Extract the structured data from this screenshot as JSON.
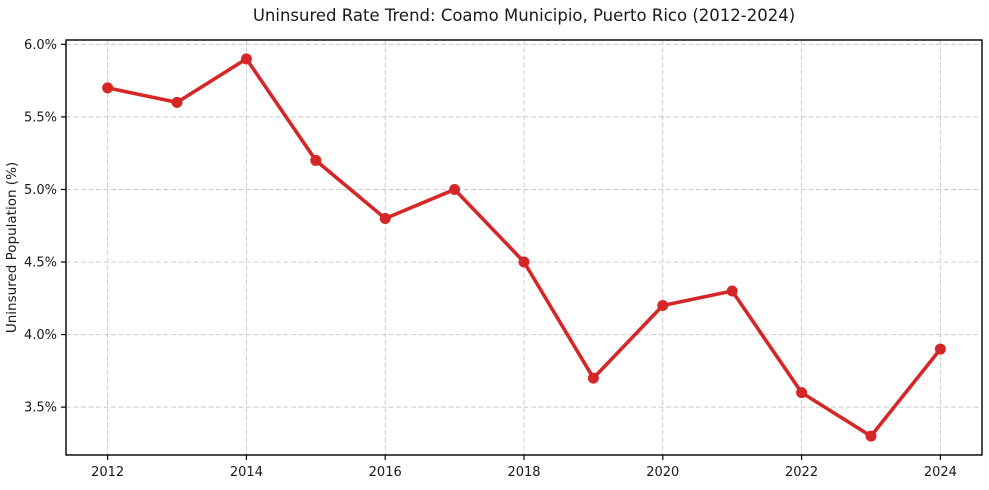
{
  "chart_data": {
    "type": "line",
    "title": "Uninsured Rate Trend: Coamo Municipio, Puerto Rico (2012-2024)",
    "xlabel": "",
    "ylabel": "Uninsured Population (%)",
    "x": [
      2012,
      2013,
      2014,
      2015,
      2016,
      2017,
      2018,
      2019,
      2020,
      2021,
      2022,
      2023,
      2024
    ],
    "values": [
      5.7,
      5.6,
      5.9,
      5.2,
      4.8,
      5.0,
      4.5,
      3.7,
      4.2,
      4.3,
      3.6,
      3.3,
      3.9
    ],
    "xlim": [
      2011.4,
      2024.6
    ],
    "ylim": [
      3.17,
      6.03
    ],
    "xticks": [
      2012,
      2014,
      2016,
      2018,
      2020,
      2022,
      2024
    ],
    "xtick_labels": [
      "2012",
      "2014",
      "2016",
      "2018",
      "2020",
      "2022",
      "2024"
    ],
    "yticks": [
      3.5,
      4.0,
      4.5,
      5.0,
      5.5,
      6.0
    ],
    "ytick_labels": [
      "3.5%",
      "4.0%",
      "4.5%",
      "5.0%",
      "5.5%",
      "6.0%"
    ],
    "grid": true,
    "grid_style": "dashed",
    "legend": "none",
    "marker": "circle",
    "colors": {
      "line": "#d62728",
      "marker": "#d62728",
      "grid": "#cccccc",
      "axis": "#000000",
      "text": "#1a1a1a",
      "background": "#ffffff"
    }
  }
}
